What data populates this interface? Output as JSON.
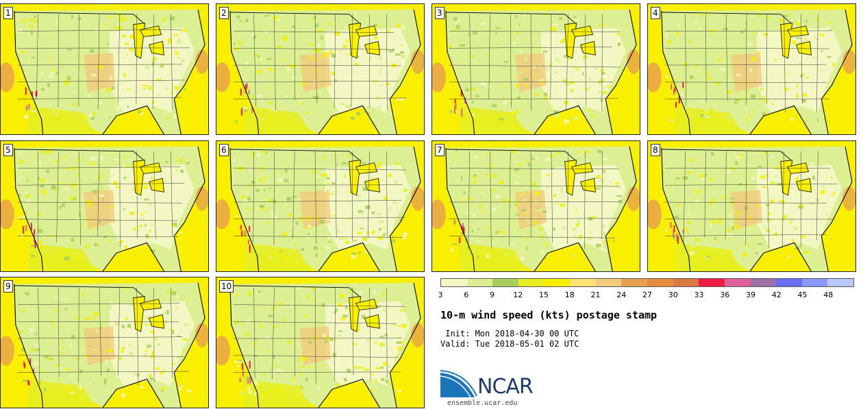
{
  "panels": [
    {
      "label": "1"
    },
    {
      "label": "2"
    },
    {
      "label": "3"
    },
    {
      "label": "4"
    },
    {
      "label": "5"
    },
    {
      "label": "6"
    },
    {
      "label": "7"
    },
    {
      "label": "8"
    },
    {
      "label": "9"
    },
    {
      "label": "10"
    }
  ],
  "colorbar": {
    "colors": [
      "#f2f7c4",
      "#ddef93",
      "#a8cf5e",
      "#e6ee22",
      "#f8f000",
      "#fbe273",
      "#f3cb7e",
      "#e89f4f",
      "#e58b3c",
      "#d97a42",
      "#ee1a47",
      "#e06098",
      "#9e70a8",
      "#6a6ef2",
      "#8a98f5",
      "#b9c8fb"
    ],
    "ticks": [
      "3",
      "6",
      "9",
      "12",
      "15",
      "18",
      "21",
      "24",
      "27",
      "30",
      "33",
      "36",
      "39",
      "42",
      "45",
      "48"
    ]
  },
  "title": "10-m wind speed (kts) postage stamp",
  "init_line": " Init: Mon 2018-04-30 00 UTC",
  "valid_line": "Valid: Tue 2018-05-01 02 UTC",
  "logo": {
    "text": "NCAR",
    "color": "#1d3a6a",
    "swoosh_color": "#1b75bb"
  },
  "site": "ensemble.ucar.edu"
}
